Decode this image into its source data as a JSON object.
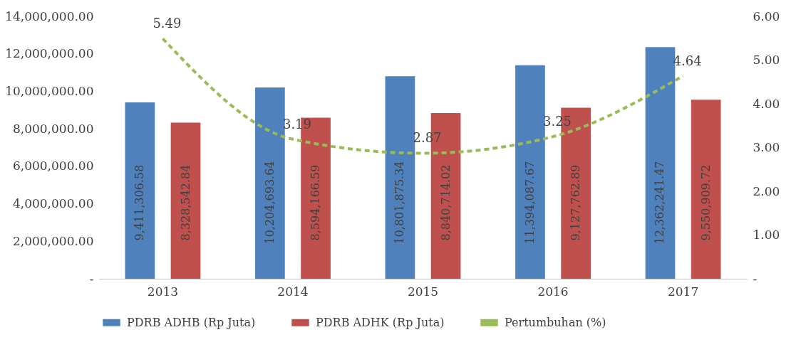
{
  "chart_data": {
    "type": "bar",
    "categories": [
      "2013",
      "2014",
      "2015",
      "2016",
      "2017"
    ],
    "series": [
      {
        "name": "PDRB ADHB (Rp Juta)",
        "color": "#4f81bd",
        "values": [
          9411306.58,
          10204693.64,
          10801875.34,
          11394087.67,
          12362241.47
        ],
        "value_labels": [
          "9,411,306.58",
          "10,204,693.64",
          "10,801,875.34",
          "11,394,087.67",
          "12,362,241.47"
        ]
      },
      {
        "name": "PDRB ADHK (Rp Juta)",
        "color": "#c0504d",
        "values": [
          8328542.84,
          8594166.59,
          8840714.02,
          9127762.89,
          9550909.72
        ],
        "value_labels": [
          "8,328,542.84",
          "8,594,166.59",
          "8,840,714.02",
          "9,127,762.89",
          "9,550,909.72"
        ]
      },
      {
        "name": "Pertumbuhan (%)",
        "type": "line",
        "axis": "y2",
        "color": "#9bbb59",
        "line_style": "dashed",
        "values": [
          5.49,
          3.19,
          2.87,
          3.25,
          4.64
        ]
      }
    ],
    "ylim": [
      0,
      14000000
    ],
    "yticks": [
      {
        "value": 0,
        "label": "-"
      },
      {
        "value": 2000000,
        "label": "2,000,000.00"
      },
      {
        "value": 4000000,
        "label": "4,000,000.00"
      },
      {
        "value": 6000000,
        "label": "6,000,000.00"
      },
      {
        "value": 8000000,
        "label": "8,000,000.00"
      },
      {
        "value": 10000000,
        "label": "10,000,000.00"
      },
      {
        "value": 12000000,
        "label": "12,000,000.00"
      },
      {
        "value": 14000000,
        "label": "14,000,000.00"
      }
    ],
    "y2lim": [
      0,
      6
    ],
    "y2ticks": [
      {
        "value": 0,
        "label": "-"
      },
      {
        "value": 1,
        "label": "1.00"
      },
      {
        "value": 2,
        "label": "2.00"
      },
      {
        "value": 3,
        "label": "3.00"
      },
      {
        "value": 4,
        "label": "4.00"
      },
      {
        "value": 5,
        "label": "5.00"
      },
      {
        "value": 6,
        "label": "6.00"
      }
    ],
    "data_labels": true,
    "grid": false,
    "legend": "bottom"
  }
}
